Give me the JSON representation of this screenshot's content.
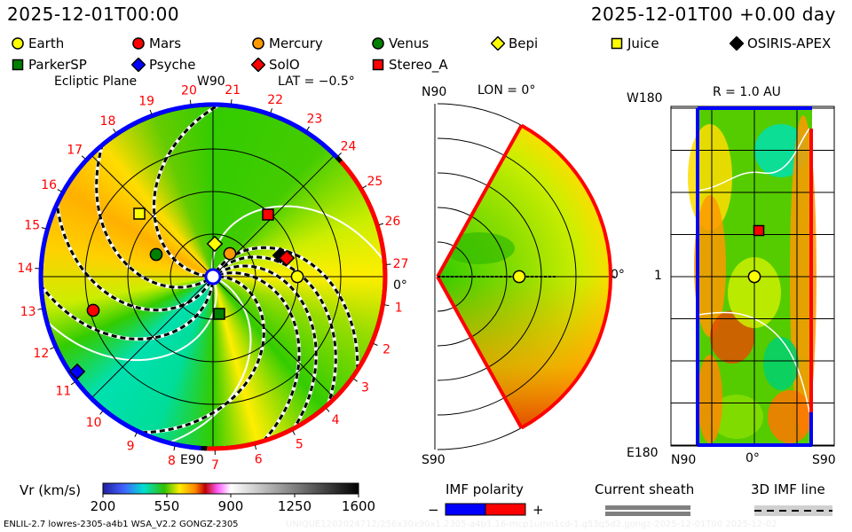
{
  "header": {
    "left_time": "2025-12-01T00:00",
    "right_time": "2025-12-01T00 +0.00 day"
  },
  "legend": [
    {
      "label": "Earth",
      "shape": "circle",
      "color": "#ffff00"
    },
    {
      "label": "Mars",
      "shape": "circle",
      "color": "#ff0000"
    },
    {
      "label": "Mercury",
      "shape": "circle",
      "color": "#ff9900"
    },
    {
      "label": "Venus",
      "shape": "circle",
      "color": "#008000"
    },
    {
      "label": "Bepi",
      "shape": "diamond",
      "color": "#ffff00"
    },
    {
      "label": "Juice",
      "shape": "square",
      "color": "#ffff00"
    },
    {
      "label": "OSIRIS-APEX",
      "shape": "diamond",
      "color": "#000000"
    },
    {
      "label": "ParkerSP",
      "shape": "square",
      "color": "#008000"
    },
    {
      "label": "Psyche",
      "shape": "diamond",
      "color": "#0000ff"
    },
    {
      "label": "SolO",
      "shape": "diamond",
      "color": "#ff0000"
    },
    {
      "label": "Stereo_A",
      "shape": "square",
      "color": "#ff0000"
    }
  ],
  "ecliptic": {
    "title": "Ecliptic Plane",
    "lat": "LAT = −0.5°",
    "top": "W90",
    "bottom": "E90",
    "right": "0°",
    "sector_labels": [
      "1",
      "2",
      "3",
      "4",
      "5",
      "6",
      "7",
      "8",
      "9",
      "10",
      "11",
      "12",
      "13",
      "14",
      "15",
      "16",
      "17",
      "18",
      "19",
      "20",
      "21",
      "22",
      "23",
      "24",
      "25",
      "26",
      "27"
    ]
  },
  "meridional": {
    "top": "N90",
    "bottom": "S90",
    "lon": "LON = 0°",
    "right": "0°"
  },
  "radial": {
    "title": "R = 1.0 AU",
    "top_left": "W180",
    "mid_left": "1",
    "bottom_left": "E180",
    "x_left": "N90",
    "x_mid": "0°",
    "x_right": "S90"
  },
  "colorbar": {
    "label": "Vr (km/s)",
    "ticks": [
      "200",
      "550",
      "900",
      "1250",
      "1600"
    ]
  },
  "imf_polarity": {
    "label": "IMF polarity",
    "minus": "−",
    "plus": "+",
    "neg_color": "#0000ff",
    "pos_color": "#ff0000"
  },
  "current_sheath": {
    "label": "Current sheath"
  },
  "imf_line": {
    "label": "3D IMF line"
  },
  "footer": {
    "left": "ENLIL-2.7 lowres-2305-a4b1 WSA_V2.2 GONGZ-2305",
    "right": "UNIQUE1202024712/256x30x90x1.2305-a4b1.16-mcp1umn1cd-1.g53q5d2.gongz-2025-12-01T00   2025-12-02"
  }
}
